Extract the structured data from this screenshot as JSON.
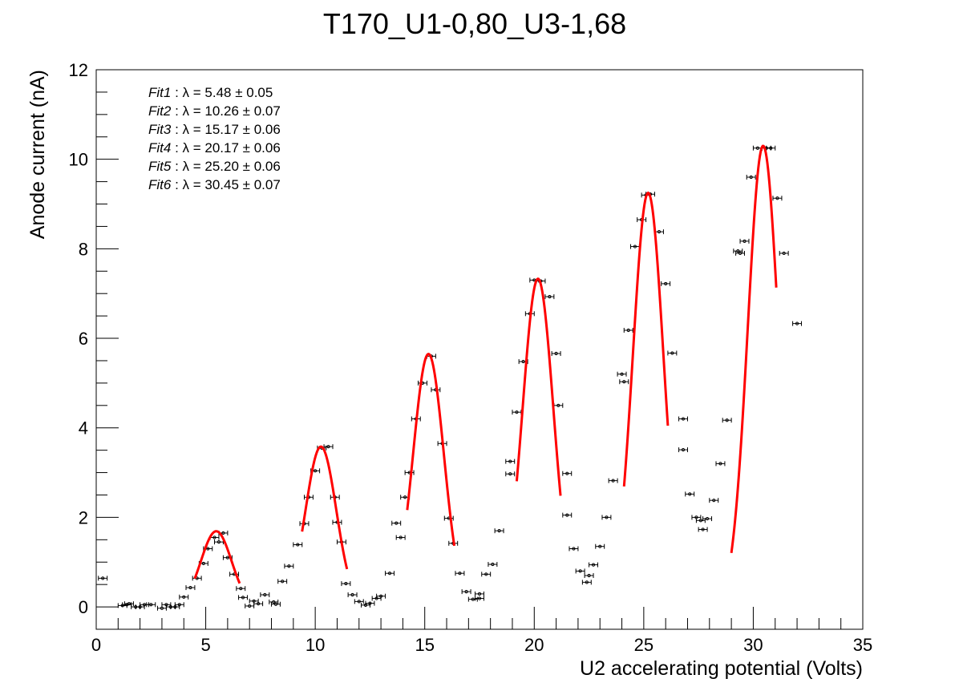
{
  "chart_data": {
    "type": "scatter",
    "title": "T170_U1-0,80_U3-1,68",
    "xlabel": "U2 accelerating potential (Volts)",
    "ylabel": "Anode current (nA)",
    "xlim": [
      0,
      35
    ],
    "ylim": [
      -0.5,
      12
    ],
    "xticks": [
      0,
      5,
      10,
      15,
      20,
      25,
      30,
      35
    ],
    "yticks": [
      0,
      2,
      4,
      6,
      8,
      10,
      12
    ],
    "grid": false,
    "x_error": 0.2,
    "fit_labels": [
      {
        "name": "Fit1",
        "text": " : λ = 5.48 ± 0.05"
      },
      {
        "name": "Fit2",
        "text": " : λ = 10.26 ± 0.07"
      },
      {
        "name": "Fit3",
        "text": " : λ = 15.17 ± 0.06"
      },
      {
        "name": "Fit4",
        "text": " : λ = 20.17 ± 0.06"
      },
      {
        "name": "Fit5",
        "text": " : λ = 25.20 ± 0.06"
      },
      {
        "name": "Fit6",
        "text": " : λ = 30.45 ± 0.07"
      }
    ],
    "points": [
      [
        0.3,
        0.64
      ],
      [
        1.2,
        0.03
      ],
      [
        1.4,
        0.05
      ],
      [
        1.5,
        0.07
      ],
      [
        1.8,
        0.0
      ],
      [
        2.0,
        0.0
      ],
      [
        2.2,
        0.05
      ],
      [
        2.5,
        0.05
      ],
      [
        3.0,
        -0.03
      ],
      [
        3.2,
        0.05
      ],
      [
        3.4,
        0.0
      ],
      [
        3.6,
        0.0
      ],
      [
        3.8,
        0.05
      ],
      [
        4.0,
        0.22
      ],
      [
        4.3,
        0.43
      ],
      [
        4.6,
        0.64
      ],
      [
        4.9,
        0.97
      ],
      [
        5.1,
        1.3
      ],
      [
        5.4,
        1.55
      ],
      [
        5.6,
        1.45
      ],
      [
        5.8,
        1.65
      ],
      [
        6.0,
        1.1
      ],
      [
        6.3,
        0.73
      ],
      [
        6.6,
        0.41
      ],
      [
        6.7,
        0.21
      ],
      [
        7.0,
        0.02
      ],
      [
        7.2,
        0.13
      ],
      [
        7.4,
        0.07
      ],
      [
        7.7,
        0.27
      ],
      [
        8.1,
        0.11
      ],
      [
        8.2,
        0.06
      ],
      [
        8.5,
        0.57
      ],
      [
        8.8,
        0.91
      ],
      [
        9.2,
        1.39
      ],
      [
        9.5,
        1.86
      ],
      [
        9.7,
        2.45
      ],
      [
        10.0,
        3.04
      ],
      [
        10.3,
        3.55
      ],
      [
        10.6,
        3.58
      ],
      [
        10.9,
        2.45
      ],
      [
        11.0,
        1.89
      ],
      [
        11.2,
        1.45
      ],
      [
        11.4,
        0.52
      ],
      [
        11.7,
        0.27
      ],
      [
        12.0,
        0.12
      ],
      [
        12.3,
        0.04
      ],
      [
        12.5,
        0.08
      ],
      [
        12.8,
        0.19
      ],
      [
        13.0,
        0.24
      ],
      [
        13.4,
        0.75
      ],
      [
        13.7,
        1.87
      ],
      [
        13.9,
        1.55
      ],
      [
        14.1,
        2.45
      ],
      [
        14.3,
        3.0
      ],
      [
        14.6,
        4.2
      ],
      [
        14.9,
        5.0
      ],
      [
        15.3,
        5.6
      ],
      [
        15.5,
        4.85
      ],
      [
        15.8,
        3.65
      ],
      [
        16.1,
        1.98
      ],
      [
        16.3,
        1.42
      ],
      [
        16.6,
        0.75
      ],
      [
        16.9,
        0.34
      ],
      [
        17.2,
        0.17
      ],
      [
        17.5,
        0.29
      ],
      [
        17.5,
        0.19
      ],
      [
        17.8,
        0.73
      ],
      [
        18.1,
        0.95
      ],
      [
        18.4,
        1.7
      ],
      [
        18.9,
        3.25
      ],
      [
        18.9,
        2.97
      ],
      [
        19.2,
        4.35
      ],
      [
        19.5,
        5.48
      ],
      [
        19.8,
        6.55
      ],
      [
        20.0,
        7.3
      ],
      [
        20.3,
        7.28
      ],
      [
        20.7,
        6.93
      ],
      [
        21.0,
        5.66
      ],
      [
        21.1,
        4.5
      ],
      [
        21.5,
        2.98
      ],
      [
        21.5,
        2.05
      ],
      [
        21.8,
        1.3
      ],
      [
        22.1,
        0.8
      ],
      [
        22.4,
        0.55
      ],
      [
        22.5,
        0.7
      ],
      [
        22.7,
        0.94
      ],
      [
        23.0,
        1.35
      ],
      [
        23.3,
        2.0
      ],
      [
        23.6,
        2.82
      ],
      [
        24.0,
        5.2
      ],
      [
        24.1,
        5.03
      ],
      [
        24.3,
        6.18
      ],
      [
        24.6,
        8.05
      ],
      [
        24.9,
        8.65
      ],
      [
        25.1,
        9.2
      ],
      [
        25.3,
        9.22
      ],
      [
        25.7,
        8.38
      ],
      [
        26.0,
        7.22
      ],
      [
        26.3,
        5.67
      ],
      [
        26.8,
        4.2
      ],
      [
        26.8,
        3.51
      ],
      [
        27.1,
        2.52
      ],
      [
        27.4,
        2.0
      ],
      [
        27.6,
        1.93
      ],
      [
        27.7,
        1.73
      ],
      [
        27.9,
        1.97
      ],
      [
        28.2,
        2.38
      ],
      [
        28.5,
        3.2
      ],
      [
        28.8,
        4.17
      ],
      [
        29.3,
        7.95
      ],
      [
        29.4,
        7.9
      ],
      [
        29.6,
        8.17
      ],
      [
        29.9,
        9.6
      ],
      [
        30.2,
        10.25
      ],
      [
        30.6,
        10.25
      ],
      [
        30.8,
        10.25
      ],
      [
        31.1,
        9.13
      ],
      [
        31.4,
        7.9
      ],
      [
        32.0,
        6.33
      ]
    ],
    "fits": [
      {
        "name": "Fit1",
        "mu": 5.48,
        "amp": 1.69,
        "sigma": 0.7,
        "x_range": [
          4.5,
          6.55
        ]
      },
      {
        "name": "Fit2",
        "mu": 10.26,
        "amp": 3.58,
        "sigma": 0.7,
        "x_range": [
          9.4,
          11.45
        ]
      },
      {
        "name": "Fit3",
        "mu": 15.17,
        "amp": 5.65,
        "sigma": 0.7,
        "x_range": [
          14.2,
          16.35
        ]
      },
      {
        "name": "Fit4",
        "mu": 20.17,
        "amp": 7.33,
        "sigma": 0.7,
        "x_range": [
          19.2,
          21.2
        ]
      },
      {
        "name": "Fit5",
        "mu": 25.2,
        "amp": 9.25,
        "sigma": 0.7,
        "x_range": [
          24.1,
          26.1
        ]
      },
      {
        "name": "Fit6",
        "mu": 30.45,
        "amp": 10.3,
        "sigma": 0.7,
        "x_range": [
          29.0,
          31.05
        ]
      }
    ],
    "colors": {
      "points": "#000000",
      "fit": "#ff0000",
      "frame": "#000000"
    }
  }
}
